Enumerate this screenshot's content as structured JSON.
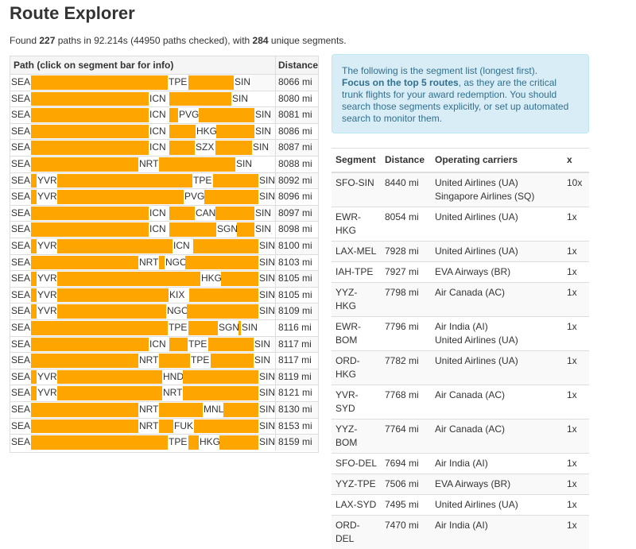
{
  "header": {
    "title": "Route Explorer"
  },
  "summary": {
    "prefix": "Found ",
    "paths": "227",
    "middle": " paths in 92.214s (44950 paths checked), with ",
    "segments": "284",
    "suffix": " unique segments."
  },
  "paths_table": {
    "headers": [
      "Path (click on segment bar for info)",
      "Distance"
    ],
    "rows": [
      {
        "stops": [
          "SEA",
          "TPE",
          "SIN"
        ],
        "distance": "8066 mi"
      },
      {
        "stops": [
          "SEA",
          "ICN",
          "SIN"
        ],
        "distance": "8080 mi"
      },
      {
        "stops": [
          "SEA",
          "ICN",
          "PVG",
          "SIN"
        ],
        "distance": "8081 mi"
      },
      {
        "stops": [
          "SEA",
          "ICN",
          "HKG",
          "SIN"
        ],
        "distance": "8086 mi"
      },
      {
        "stops": [
          "SEA",
          "ICN",
          "SZX",
          "SIN"
        ],
        "distance": "8087 mi"
      },
      {
        "stops": [
          "SEA",
          "NRT",
          "SIN"
        ],
        "distance": "8088 mi"
      },
      {
        "stops": [
          "SEA",
          "YVR",
          "TPE",
          "SIN"
        ],
        "distance": "8092 mi"
      },
      {
        "stops": [
          "SEA",
          "YVR",
          "PVG",
          "SIN"
        ],
        "distance": "8096 mi"
      },
      {
        "stops": [
          "SEA",
          "ICN",
          "CAN",
          "SIN"
        ],
        "distance": "8097 mi"
      },
      {
        "stops": [
          "SEA",
          "ICN",
          "SGN",
          "SIN"
        ],
        "distance": "8098 mi"
      },
      {
        "stops": [
          "SEA",
          "YVR",
          "ICN",
          "SIN"
        ],
        "distance": "8100 mi"
      },
      {
        "stops": [
          "SEA",
          "NRT",
          "NGO",
          "SIN"
        ],
        "distance": "8103 mi"
      },
      {
        "stops": [
          "SEA",
          "YVR",
          "HKG",
          "SIN"
        ],
        "distance": "8105 mi"
      },
      {
        "stops": [
          "SEA",
          "YVR",
          "KIX",
          "SIN"
        ],
        "distance": "8105 mi"
      },
      {
        "stops": [
          "SEA",
          "YVR",
          "NGO",
          "SIN"
        ],
        "distance": "8109 mi"
      },
      {
        "stops": [
          "SEA",
          "TPE",
          "SGN",
          "SIN"
        ],
        "distance": "8116 mi"
      },
      {
        "stops": [
          "SEA",
          "ICN",
          "TPE",
          "SIN"
        ],
        "distance": "8117 mi"
      },
      {
        "stops": [
          "SEA",
          "NRT",
          "TPE",
          "SIN"
        ],
        "distance": "8117 mi"
      },
      {
        "stops": [
          "SEA",
          "YVR",
          "HND",
          "SIN"
        ],
        "distance": "8119 mi"
      },
      {
        "stops": [
          "SEA",
          "YVR",
          "NRT",
          "SIN"
        ],
        "distance": "8121 mi"
      },
      {
        "stops": [
          "SEA",
          "NRT",
          "MNL",
          "SIN"
        ],
        "distance": "8130 mi"
      },
      {
        "stops": [
          "SEA",
          "NRT",
          "FUK",
          "SIN"
        ],
        "distance": "8153 mi"
      },
      {
        "stops": [
          "SEA",
          "TPE",
          "HKG",
          "SIN"
        ],
        "distance": "8159 mi"
      }
    ]
  },
  "info": {
    "line1": "The following is the segment list (longest first).",
    "bold": "Focus on the top 5 routes",
    "rest": ", as they are the critical trunk flights for your award redemption. You should search those segments explicitly, or set up automated search to monitor them."
  },
  "segments_table": {
    "headers": [
      "Segment",
      "Distance",
      "Operating carriers",
      "x"
    ],
    "rows": [
      {
        "segment": "SFO-SIN",
        "distance": "8440 mi",
        "carriers": [
          "United Airlines (UA)",
          "Singapore Airlines (SQ)"
        ],
        "count": "10x"
      },
      {
        "segment": "EWR-HKG",
        "distance": "8054 mi",
        "carriers": [
          "United Airlines (UA)"
        ],
        "count": "1x"
      },
      {
        "segment": "LAX-MEL",
        "distance": "7928 mi",
        "carriers": [
          "United Airlines (UA)"
        ],
        "count": "1x"
      },
      {
        "segment": "IAH-TPE",
        "distance": "7927 mi",
        "carriers": [
          "EVA Airways (BR)"
        ],
        "count": "1x"
      },
      {
        "segment": "YYZ-HKG",
        "distance": "7798 mi",
        "carriers": [
          "Air Canada (AC)"
        ],
        "count": "1x"
      },
      {
        "segment": "EWR-BOM",
        "distance": "7796 mi",
        "carriers": [
          "Air India (AI)",
          "United Airlines (UA)"
        ],
        "count": "1x"
      },
      {
        "segment": "ORD-HKG",
        "distance": "7782 mi",
        "carriers": [
          "United Airlines (UA)"
        ],
        "count": "1x"
      },
      {
        "segment": "YVR-SYD",
        "distance": "7768 mi",
        "carriers": [
          "Air Canada (AC)"
        ],
        "count": "1x"
      },
      {
        "segment": "YYZ-BOM",
        "distance": "7764 mi",
        "carriers": [
          "Air Canada (AC)"
        ],
        "count": "1x"
      },
      {
        "segment": "SFO-DEL",
        "distance": "7694 mi",
        "carriers": [
          "Air India (AI)"
        ],
        "count": "1x"
      },
      {
        "segment": "YYZ-TPE",
        "distance": "7506 mi",
        "carriers": [
          "EVA Airways (BR)"
        ],
        "count": "1x"
      },
      {
        "segment": "LAX-SYD",
        "distance": "7495 mi",
        "carriers": [
          "United Airlines (UA)"
        ],
        "count": "1x"
      },
      {
        "segment": "ORD-DEL",
        "distance": "7470 mi",
        "carriers": [
          "Air India (AI)"
        ],
        "count": "1x"
      }
    ]
  }
}
